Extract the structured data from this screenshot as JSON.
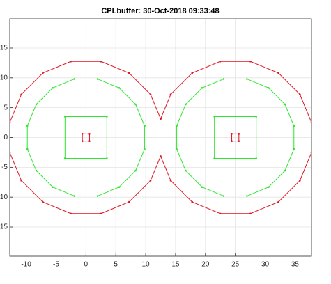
{
  "chart_data": {
    "type": "line",
    "title": "CPLbuffer: 30-Oct-2018 09:33:48",
    "xlim": [
      -12.75,
      37.75
    ],
    "ylim": [
      -19.9,
      19.9
    ],
    "xticks": [
      -10,
      -5,
      0,
      5,
      10,
      15,
      20,
      25,
      30,
      35
    ],
    "yticks": [
      -15,
      -10,
      -5,
      0,
      5,
      10,
      15
    ],
    "grid": true,
    "series": [
      {
        "color": "#e0141e",
        "x": [
          12.5,
          10.809,
          7.222,
          2.536,
          -2.536,
          -7.222,
          -10.809,
          -12.75,
          -12.75,
          -10.809,
          -7.222,
          -2.536,
          2.536,
          7.222,
          10.809,
          12.5,
          14.191,
          17.778,
          22.464,
          27.536,
          32.222,
          35.809,
          37.75,
          37.75,
          35.809,
          32.222,
          27.536,
          22.464,
          17.778,
          14.191,
          12.5
        ],
        "values": [
          3.14,
          7.222,
          10.809,
          12.75,
          12.75,
          10.809,
          7.222,
          2.536,
          -2.536,
          -7.222,
          -10.809,
          -12.75,
          -12.75,
          -10.809,
          -7.222,
          -3.14,
          -7.222,
          -10.809,
          -12.75,
          -12.75,
          -10.809,
          -7.222,
          -2.536,
          2.536,
          7.222,
          10.809,
          12.75,
          12.75,
          10.809,
          7.222,
          3.14
        ]
      },
      {
        "color": "#2ee62e",
        "x": [
          9.808,
          8.315,
          5.556,
          1.951,
          -1.951,
          -5.556,
          -8.315,
          -9.808,
          -9.808,
          -8.315,
          -5.556,
          -1.951,
          1.951,
          5.556,
          8.315,
          9.808,
          9.808
        ],
        "values": [
          1.951,
          5.556,
          8.315,
          9.808,
          9.808,
          8.315,
          5.556,
          1.951,
          -1.951,
          -5.556,
          -8.315,
          -9.808,
          -9.808,
          -8.315,
          -5.556,
          -1.951,
          1.951
        ]
      },
      {
        "color": "#2ee62e",
        "x": [
          34.808,
          33.315,
          30.556,
          26.951,
          23.049,
          19.444,
          16.685,
          15.192,
          15.192,
          16.685,
          19.444,
          23.049,
          26.951,
          30.556,
          33.315,
          34.808,
          34.808
        ],
        "values": [
          1.951,
          5.556,
          8.315,
          9.808,
          9.808,
          8.315,
          5.556,
          1.951,
          -1.951,
          -5.556,
          -8.315,
          -9.808,
          -9.808,
          -8.315,
          -5.556,
          -1.951,
          1.951
        ]
      },
      {
        "color": "#2ee62e",
        "x": [
          -3.5,
          3.5,
          3.5,
          -3.5,
          -3.5
        ],
        "values": [
          -3.5,
          -3.5,
          3.5,
          3.5,
          -3.5
        ]
      },
      {
        "color": "#2ee62e",
        "x": [
          21.5,
          28.5,
          28.5,
          21.5,
          21.5
        ],
        "values": [
          -3.5,
          -3.5,
          3.5,
          3.5,
          -3.5
        ]
      },
      {
        "color": "#e0141e",
        "x": [
          -0.6,
          0.6,
          0.6,
          -0.6,
          -0.6
        ],
        "values": [
          -0.6,
          -0.6,
          0.6,
          0.6,
          -0.6
        ]
      },
      {
        "color": "#e0141e",
        "x": [
          24.4,
          25.6,
          25.6,
          24.4,
          24.4
        ],
        "values": [
          -0.6,
          -0.6,
          0.6,
          0.6,
          -0.6
        ]
      }
    ]
  }
}
